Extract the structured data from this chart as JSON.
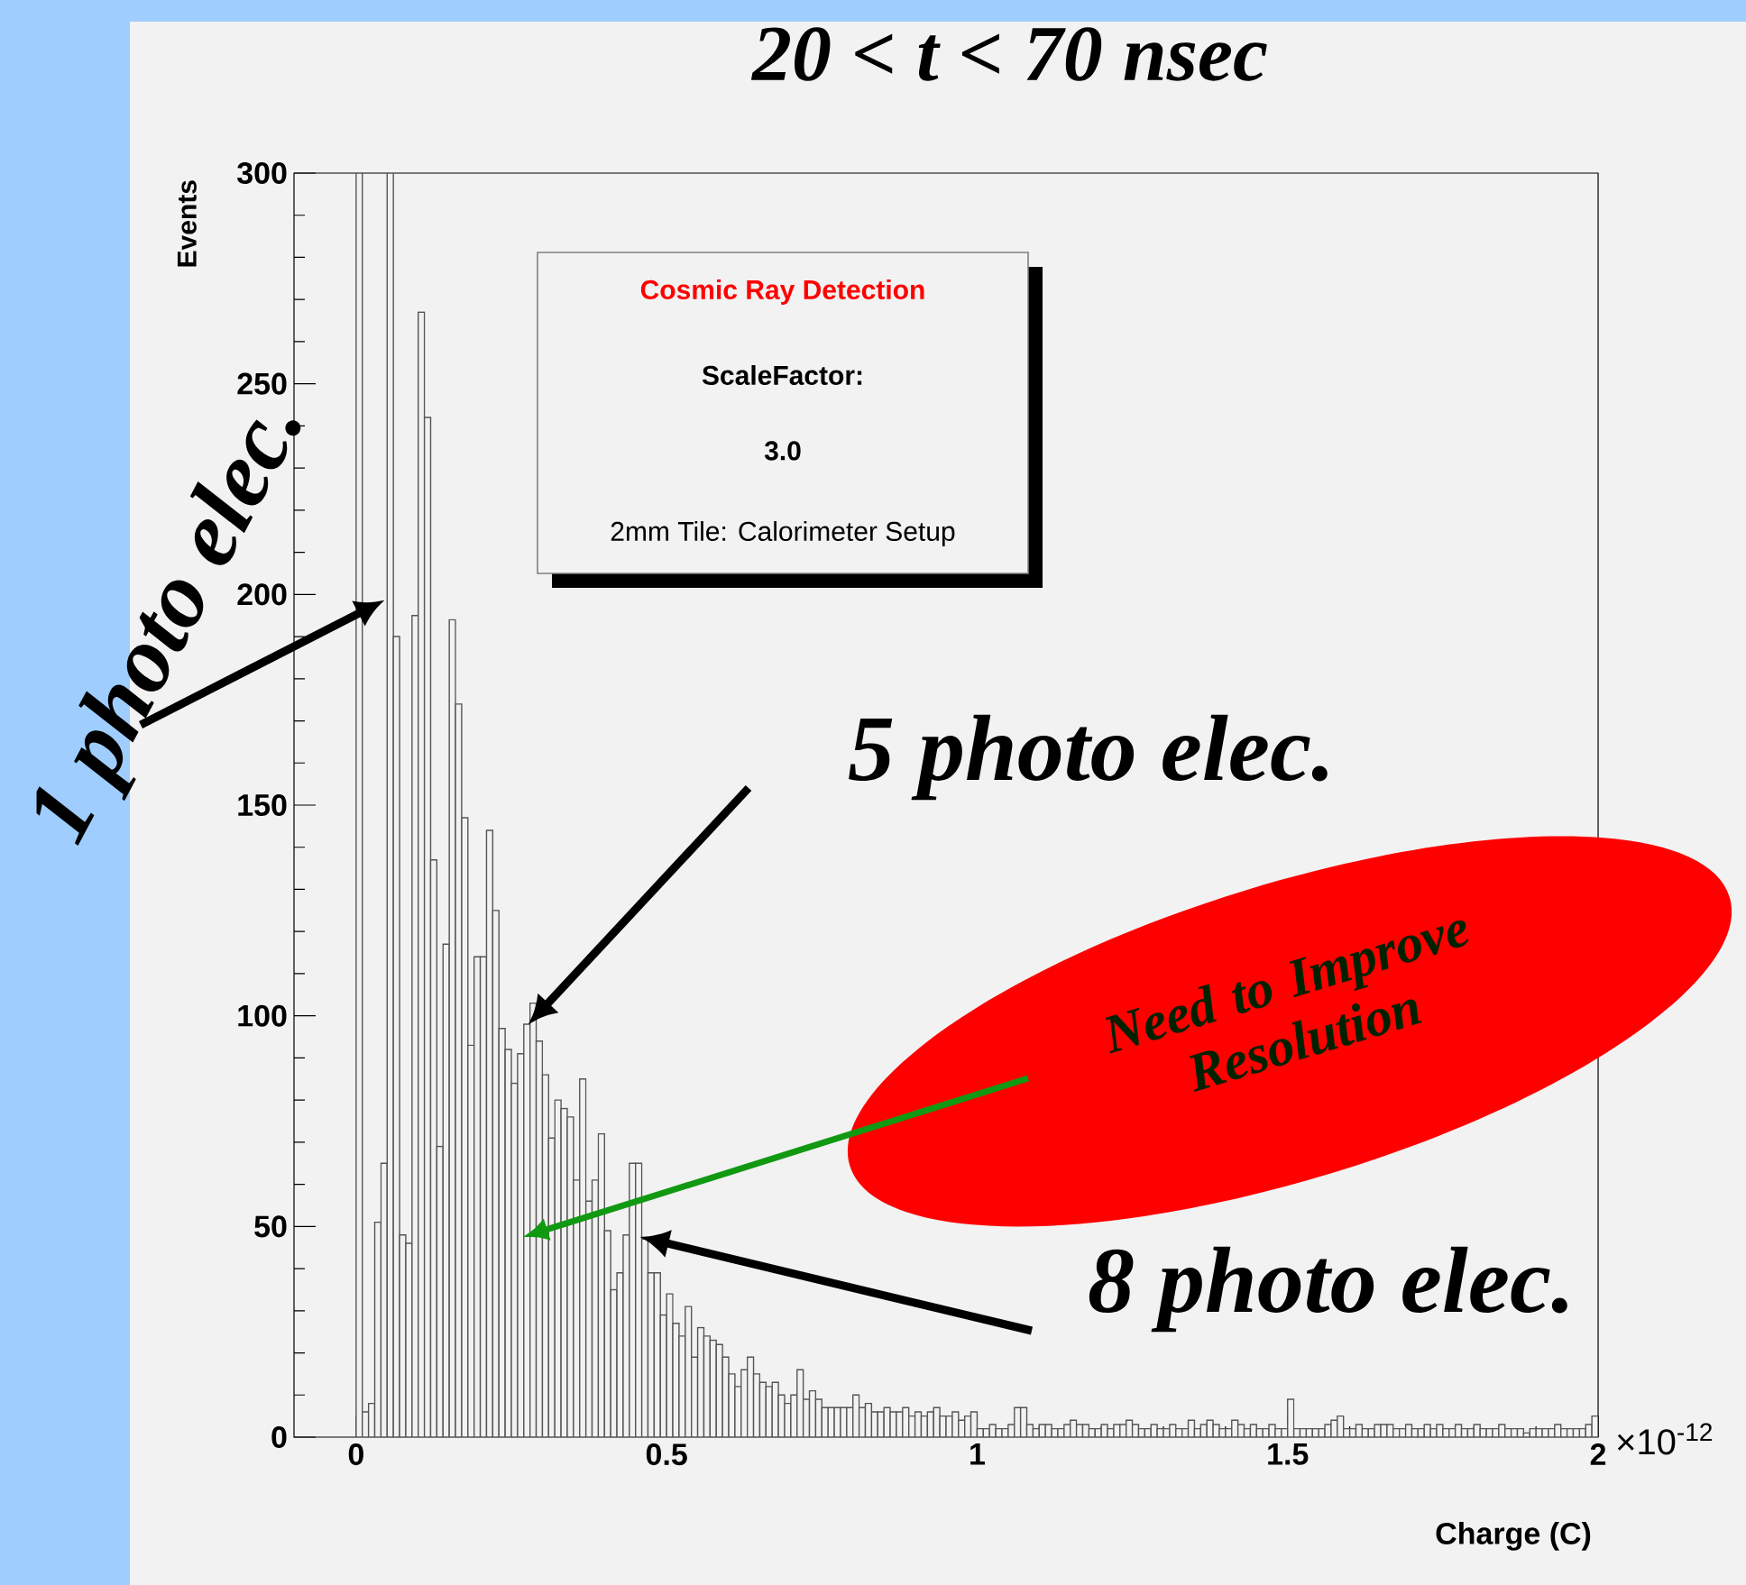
{
  "chart_data": {
    "type": "histogram",
    "title": "20 < t < 70 nsec",
    "xlabel": "Charge (C)",
    "ylabel": "Events",
    "color": "#555555",
    "bins": [
      0,
      0.01,
      0.02,
      0.03,
      0.04,
      0.05,
      0.06,
      0.07,
      0.08,
      0.09,
      0.1,
      0.11,
      0.12,
      0.13,
      0.14,
      0.15,
      0.16,
      0.17,
      0.18,
      0.19,
      0.2,
      0.21,
      0.22,
      0.23,
      0.24,
      0.25,
      0.26,
      0.27,
      0.28,
      0.29,
      0.3,
      0.31,
      0.32,
      0.33,
      0.34,
      0.35,
      0.36,
      0.37,
      0.38,
      0.39,
      0.4,
      0.41,
      0.42,
      0.43,
      0.44,
      0.45,
      0.46,
      0.47,
      0.48,
      0.49,
      0.5,
      0.51,
      0.52,
      0.53,
      0.54,
      0.55,
      0.56,
      0.57,
      0.58,
      0.59,
      0.6,
      0.61,
      0.62,
      0.63,
      0.64,
      0.65,
      0.66,
      0.67,
      0.68,
      0.69,
      0.7,
      0.71,
      0.72,
      0.73,
      0.74,
      0.75,
      0.76,
      0.77,
      0.78,
      0.79,
      0.8,
      0.81,
      0.82,
      0.83,
      0.84,
      0.85,
      0.86,
      0.87,
      0.88,
      0.89,
      0.9,
      0.91,
      0.92,
      0.93,
      0.94,
      0.95,
      0.96,
      0.97,
      0.98,
      0.99,
      1,
      1.01,
      1.02,
      1.03,
      1.04,
      1.05,
      1.06,
      1.07,
      1.08,
      1.09,
      1.1,
      1.11,
      1.12,
      1.13,
      1.14,
      1.15,
      1.16,
      1.17,
      1.18,
      1.19,
      1.2,
      1.21,
      1.22,
      1.23,
      1.24,
      1.25,
      1.26,
      1.27,
      1.28,
      1.29,
      1.3,
      1.31,
      1.32,
      1.33,
      1.34,
      1.35,
      1.36,
      1.37,
      1.38,
      1.39,
      1.4,
      1.41,
      1.42,
      1.43,
      1.44,
      1.45,
      1.46,
      1.47,
      1.48,
      1.49,
      1.5,
      1.51,
      1.52,
      1.53,
      1.54,
      1.55,
      1.56,
      1.57,
      1.58,
      1.59,
      1.6,
      1.61,
      1.62,
      1.63,
      1.64,
      1.65,
      1.66,
      1.67,
      1.68,
      1.69,
      1.7,
      1.71,
      1.72,
      1.73,
      1.74,
      1.75,
      1.76,
      1.77,
      1.78,
      1.79,
      1.8,
      1.81,
      1.82,
      1.83,
      1.84,
      1.85,
      1.86,
      1.87,
      1.88,
      1.89,
      1.9,
      1.91,
      1.92,
      1.93,
      1.94,
      1.95,
      1.96,
      1.97,
      1.98,
      1.99,
      2
    ],
    "values": [
      300,
      6,
      8,
      51,
      65,
      300,
      190,
      48,
      46,
      195,
      267,
      242,
      137,
      69,
      117,
      194,
      174,
      147,
      93,
      114,
      114,
      144,
      125,
      97,
      92,
      84,
      91,
      98,
      103,
      94,
      86,
      71,
      80,
      78,
      76,
      61,
      85,
      56,
      61,
      72,
      49,
      35,
      39,
      48,
      65,
      65,
      47,
      39,
      39,
      29,
      34,
      27,
      24,
      31,
      19,
      26,
      24,
      23,
      22,
      19,
      15,
      12,
      16,
      19,
      15,
      13,
      12,
      13,
      10,
      8,
      10,
      16,
      9,
      11,
      9,
      7,
      7,
      7,
      7,
      7,
      10,
      7,
      8,
      6,
      6,
      7,
      6,
      6,
      7,
      5,
      6,
      5,
      6,
      7,
      5,
      5,
      6,
      4,
      5,
      6,
      2,
      2,
      3,
      2,
      2,
      3,
      7,
      7,
      3,
      2,
      3,
      3,
      2,
      2,
      3,
      4,
      3,
      3,
      2,
      2,
      3,
      2,
      3,
      3,
      4,
      3,
      2,
      2,
      3,
      2,
      2,
      3,
      2,
      2,
      4,
      2,
      3,
      4,
      3,
      2,
      2,
      4,
      3,
      2,
      3,
      2,
      2,
      3,
      2,
      2,
      9,
      2,
      2,
      2,
      2,
      2,
      3,
      4,
      5,
      2,
      2,
      3,
      2,
      2,
      3,
      3,
      3,
      2,
      2,
      3,
      2,
      2,
      3,
      2,
      3,
      2,
      2,
      3,
      2,
      2,
      3,
      2,
      2,
      2,
      3,
      2,
      2,
      2,
      1,
      2,
      2,
      2,
      2,
      3,
      2,
      2,
      2,
      2,
      3,
      5
    ],
    "xlim": [
      -0.1,
      2
    ],
    "ylim": [
      0,
      300
    ],
    "xticks": [
      0,
      0.5,
      1,
      1.5,
      2
    ],
    "yticks": [
      0,
      50,
      100,
      150,
      200,
      250,
      300
    ],
    "annotations": [
      "×10$^{-12}$",
      "Cosmic Ray Detection",
      "ScaleFactor:",
      "3.0",
      "2mm Tile: Calorimeter Setup",
      "1 photo elec.",
      "5 photo elec.",
      "8 photo elec.",
      "Need to Improve Resolution"
    ]
  }
}
